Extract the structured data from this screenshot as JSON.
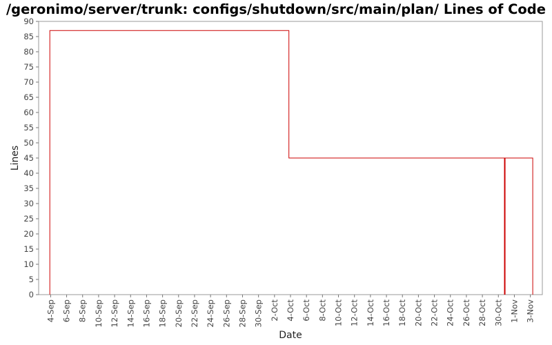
{
  "chart_data": {
    "type": "line",
    "title": "/geronimo/server/trunk: configs/shutdown/src/main/plan/ Lines of Code",
    "xlabel": "Date",
    "ylabel": "Lines",
    "ylim": [
      0,
      90
    ],
    "y_ticks": [
      0,
      5,
      10,
      15,
      20,
      25,
      30,
      35,
      40,
      45,
      50,
      55,
      60,
      65,
      70,
      75,
      80,
      85,
      90
    ],
    "x_range_days": [
      -1.5,
      61.5
    ],
    "x_ticks": [
      {
        "label": "4-Sep",
        "day": 0
      },
      {
        "label": "6-Sep",
        "day": 2
      },
      {
        "label": "8-Sep",
        "day": 4
      },
      {
        "label": "10-Sep",
        "day": 6
      },
      {
        "label": "12-Sep",
        "day": 8
      },
      {
        "label": "14-Sep",
        "day": 10
      },
      {
        "label": "16-Sep",
        "day": 12
      },
      {
        "label": "18-Sep",
        "day": 14
      },
      {
        "label": "20-Sep",
        "day": 16
      },
      {
        "label": "22-Sep",
        "day": 18
      },
      {
        "label": "24-Sep",
        "day": 20
      },
      {
        "label": "26-Sep",
        "day": 22
      },
      {
        "label": "28-Sep",
        "day": 24
      },
      {
        "label": "30-Sep",
        "day": 26
      },
      {
        "label": "2-Oct",
        "day": 28
      },
      {
        "label": "4-Oct",
        "day": 30
      },
      {
        "label": "6-Oct",
        "day": 32
      },
      {
        "label": "8-Oct",
        "day": 34
      },
      {
        "label": "10-Oct",
        "day": 36
      },
      {
        "label": "12-Oct",
        "day": 38
      },
      {
        "label": "14-Oct",
        "day": 40
      },
      {
        "label": "16-Oct",
        "day": 42
      },
      {
        "label": "18-Oct",
        "day": 44
      },
      {
        "label": "20-Oct",
        "day": 46
      },
      {
        "label": "22-Oct",
        "day": 48
      },
      {
        "label": "24-Oct",
        "day": 50
      },
      {
        "label": "26-Oct",
        "day": 52
      },
      {
        "label": "28-Oct",
        "day": 54
      },
      {
        "label": "30-Oct",
        "day": 56
      },
      {
        "label": "1-Nov",
        "day": 58
      },
      {
        "label": "3-Nov",
        "day": 60
      }
    ],
    "series": [
      {
        "color": "#cc0000",
        "step": true,
        "points": [
          {
            "day": -0.1,
            "y": 0
          },
          {
            "day": -0.1,
            "y": 87
          },
          {
            "day": 29.8,
            "y": 87
          },
          {
            "day": 29.8,
            "y": 45
          },
          {
            "day": 56.8,
            "y": 45
          },
          {
            "day": 56.8,
            "y": 0
          },
          {
            "day": 56.8,
            "y": 45
          },
          {
            "day": 60.3,
            "y": 45
          },
          {
            "day": 60.3,
            "y": 0
          }
        ]
      }
    ],
    "grid": false,
    "colors": {
      "frame": "#999999",
      "tick": "#777777",
      "line": "#cc0000"
    }
  }
}
